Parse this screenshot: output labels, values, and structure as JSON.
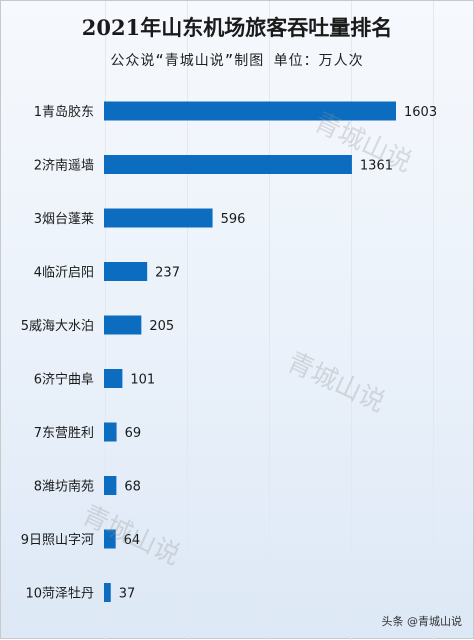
{
  "title": "2021年山东机场旅客吞吐量排名",
  "subtitle": "公众说“青城山说”制图    单位：万人次",
  "watermark": "青城山说",
  "footer": "头条 @青城山说",
  "colors": {
    "bar": "#0b6cc0",
    "text": "#1a1a1a"
  },
  "chart_data": {
    "type": "bar",
    "orientation": "horizontal",
    "categories": [
      "1青岛胶东",
      "2济南遥墙",
      "3烟台蓬莱",
      "4临沂启阳",
      "5威海大水泊",
      "6济宁曲阜",
      "7东营胜利",
      "8潍坊南苑",
      "9日照山字河",
      "10菏泽牡丹"
    ],
    "values": [
      1603,
      1361,
      596,
      237,
      205,
      101,
      69,
      68,
      64,
      37
    ],
    "title": "2021年山东机场旅客吞吐量排名",
    "xlabel": "",
    "ylabel": "",
    "xlim": [
      0,
      1800
    ],
    "grid": true,
    "data_labels": true
  }
}
